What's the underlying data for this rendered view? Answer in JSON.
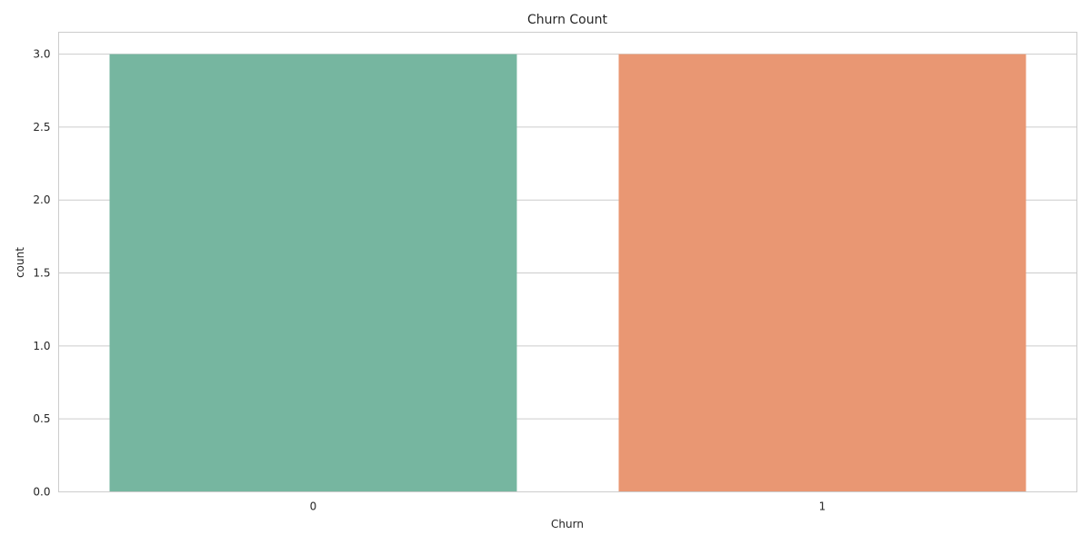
{
  "chart_data": {
    "type": "bar",
    "title": "Churn Count",
    "xlabel": "Churn",
    "ylabel": "count",
    "categories": [
      "0",
      "1"
    ],
    "values": [
      3,
      3
    ],
    "ylim": [
      0,
      3.15
    ],
    "yticks": [
      "0.0",
      "0.5",
      "1.0",
      "1.5",
      "2.0",
      "2.5",
      "3.0"
    ],
    "grid": true,
    "colors": [
      "#76b6a0",
      "#e99773"
    ],
    "grid_color": "#cccccc",
    "text_color": "#262626"
  }
}
